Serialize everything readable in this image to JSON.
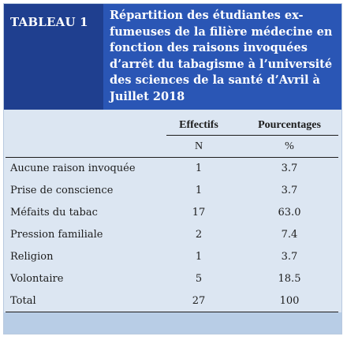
{
  "table": {
    "tag": "TABLEAU 1",
    "title_lines": [
      "Répartition des étudiantes ex-",
      "fumeuses de la filière médecine en",
      "fonction des raisons invoquées",
      "d’arrêt du tabagisme à l’université",
      "des sciences de la santé d’Avril à",
      "Juillet 2018"
    ],
    "col_headers": [
      "Effectifs",
      "Pourcentages"
    ],
    "col_subheaders": [
      "N",
      "%"
    ],
    "rows": [
      {
        "label": "Aucune raison invoquée",
        "n": "1",
        "pct": "3.7"
      },
      {
        "label": "Prise de conscience",
        "n": "1",
        "pct": "3.7"
      },
      {
        "label": "Méfaits du tabac",
        "n": "17",
        "pct": "63.0"
      },
      {
        "label": "Pression familiale",
        "n": "2",
        "pct": "7.4"
      },
      {
        "label": "Religion",
        "n": "1",
        "pct": "3.7"
      },
      {
        "label": "Volontaire",
        "n": "5",
        "pct": "18.5"
      },
      {
        "label": "Total",
        "n": "27",
        "pct": "100"
      }
    ]
  }
}
